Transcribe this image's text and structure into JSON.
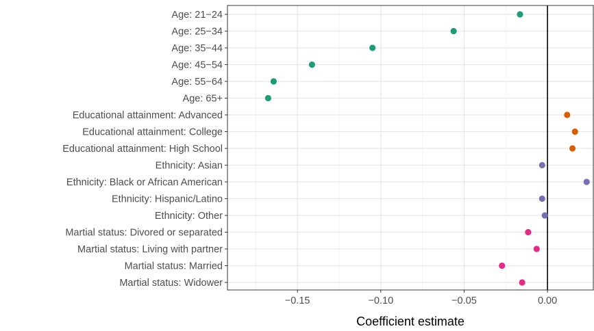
{
  "chart_data": {
    "type": "scatter",
    "xlabel": "Coefficient estimate",
    "ylabel": "",
    "xlim": [
      -0.192,
      0.0275
    ],
    "xticks": [
      -0.15,
      -0.1,
      -0.05,
      0.0
    ],
    "xtick_labels": [
      "−0.15",
      "−0.10",
      "−0.05",
      "0.00"
    ],
    "reference_line_x": 0,
    "grid": true,
    "legend": "none",
    "categories": [
      "Age: 21−24",
      "Age: 25−34",
      "Age: 35−44",
      "Age: 45−54",
      "Age: 55−64",
      "Age: 65+",
      "Educational attainment: Advanced",
      "Educational attainment: College",
      "Educational attainment: High School",
      "Ethnicity: Asian",
      "Ethnicity: Black or African American",
      "Ethnicity: Hispanic/Latino",
      "Ethnicity: Other",
      "Martial status: Divored or separated",
      "Martial status: Living with partner",
      "Martial status: Married",
      "Martial status: Widower"
    ],
    "values": [
      -0.0165,
      -0.0563,
      -0.105,
      -0.1413,
      -0.1643,
      -0.1676,
      0.0118,
      0.0165,
      0.015,
      -0.0032,
      0.0235,
      -0.0032,
      -0.0016,
      -0.0116,
      -0.0065,
      -0.0273,
      -0.0152
    ],
    "groups": [
      "age",
      "age",
      "age",
      "age",
      "age",
      "age",
      "edu",
      "edu",
      "edu",
      "eth",
      "eth",
      "eth",
      "eth",
      "mar",
      "mar",
      "mar",
      "mar"
    ],
    "group_colors": {
      "age": "#1b9e77",
      "edu": "#d95f02",
      "eth": "#7570b3",
      "mar": "#e7298a"
    }
  }
}
